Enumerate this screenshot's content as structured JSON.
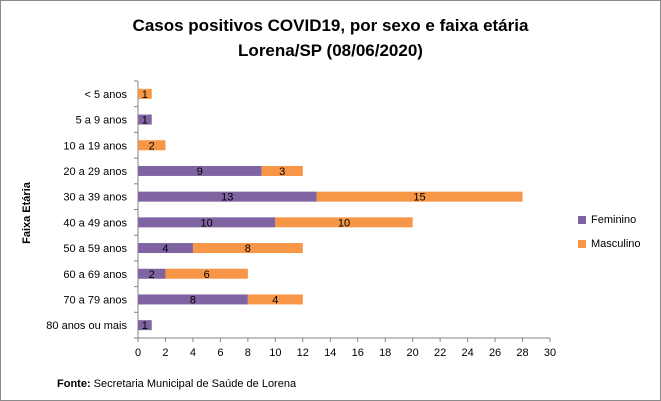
{
  "chart_data": {
    "type": "bar",
    "orientation": "horizontal",
    "stacked": true,
    "title": "Casos positivos  COVID19, por sexo e faixa etária",
    "subtitle": "Lorena/SP (08/06/2020)",
    "ylabel": "Faixa Etária",
    "xlabel": "",
    "xlim": [
      0,
      30
    ],
    "xticks": [
      0,
      2,
      4,
      6,
      8,
      10,
      12,
      14,
      16,
      18,
      20,
      22,
      24,
      26,
      28,
      30
    ],
    "grid": false,
    "legend": "right",
    "categories": [
      "< 5 anos",
      "5 a 9 anos",
      "10 a 19 anos",
      "20 a 29 anos",
      "30 a 39 anos",
      "40 a 49 anos",
      "50 a 59 anos",
      "60 a 69 anos",
      "70 a 79 anos",
      "80 anos ou mais"
    ],
    "series": [
      {
        "name": "Feminino",
        "color": "#8064a2",
        "values": [
          0,
          1,
          0,
          9,
          13,
          10,
          4,
          2,
          8,
          1
        ]
      },
      {
        "name": "Masculino",
        "color": "#f79646",
        "values": [
          1,
          0,
          2,
          3,
          15,
          10,
          8,
          6,
          4,
          0
        ]
      }
    ]
  },
  "source": {
    "label": "Fonte:",
    "text": " Secretaria Municipal de Saúde de Lorena"
  }
}
